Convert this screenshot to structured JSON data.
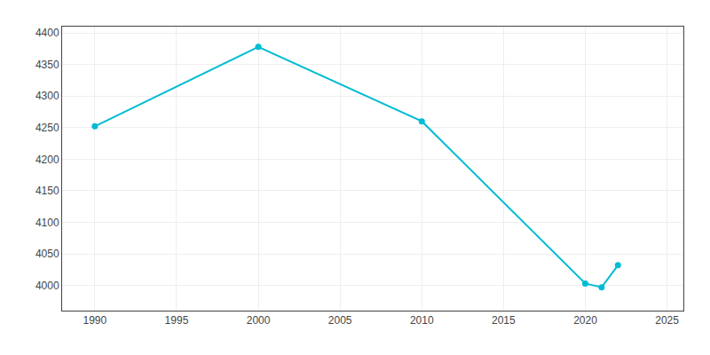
{
  "chart_data": {
    "type": "line",
    "x": [
      1990,
      2000,
      2010,
      2020,
      2021,
      2022
    ],
    "values": [
      4252,
      4378,
      4260,
      4003,
      3997,
      4032
    ],
    "color": "#00BCD4",
    "marker": "circle",
    "xlim": [
      1988,
      2026
    ],
    "ylim": [
      3960,
      4410
    ],
    "xticks": [
      1990,
      1995,
      2000,
      2005,
      2010,
      2015,
      2020,
      2025
    ],
    "yticks": [
      4000,
      4050,
      4100,
      4150,
      4200,
      4250,
      4300,
      4350,
      4400
    ],
    "grid": true
  }
}
